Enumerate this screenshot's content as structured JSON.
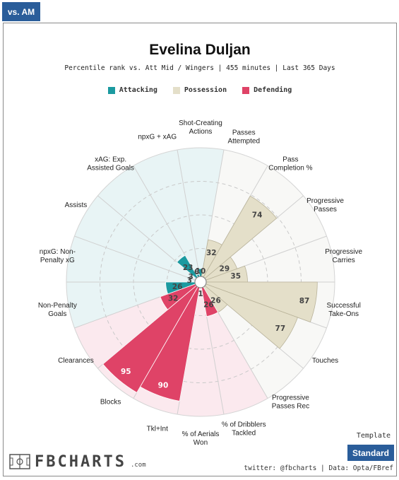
{
  "tab": {
    "label": "vs. AM"
  },
  "header": {
    "title": "Evelina Duljan",
    "subtitle": "Percentile rank vs. Att Mid / Wingers | 455 minutes | Last 365 Days"
  },
  "legend": [
    {
      "label": "Attacking",
      "color": "#1b9aa0"
    },
    {
      "label": "Possession",
      "color": "#e4dfc9"
    },
    {
      "label": "Defending",
      "color": "#df4367"
    }
  ],
  "template": {
    "label": "Template",
    "button": "Standard"
  },
  "logo": {
    "text": "FBCHARTS",
    "suffix": ".com"
  },
  "footer": {
    "credit": "twitter: @fbcharts | Data: Opta/FBref"
  },
  "chart_data": {
    "type": "radar-bar",
    "ylim": [
      0,
      100
    ],
    "categories": [
      "Shot-Creating Actions",
      "Passes Attempted",
      "Pass Completion %",
      "Progressive Passes",
      "Progressive Carries",
      "Successful Take-Ons",
      "Touches",
      "Progressive Passes Rec",
      "% of Dribblers Tackled",
      "% of Aerials Won",
      "Tkl+Int",
      "Blocks",
      "Clearances",
      "Non-Penalty Goals",
      "npxG: Non-Penalty xG",
      "Assists",
      "xAG: Exp. Assisted Goals",
      "npxG + xAG"
    ],
    "label_lines": [
      [
        "Shot-Creating",
        "Actions"
      ],
      [
        "Passes",
        "Attempted"
      ],
      [
        "Pass",
        "Completion %"
      ],
      [
        "Progressive",
        "Passes"
      ],
      [
        "Progressive",
        "Carries"
      ],
      [
        "Successful",
        "Take-Ons"
      ],
      [
        "Touches"
      ],
      [
        "Progressive",
        "Passes Rec"
      ],
      [
        "% of Dribblers",
        "Tackled"
      ],
      [
        "% of Aerials",
        "Won"
      ],
      [
        "Tkl+Int"
      ],
      [
        "Blocks"
      ],
      [
        "Clearances"
      ],
      [
        "Non-Penalty",
        "Goals"
      ],
      [
        "npxG: Non-",
        "Penalty xG"
      ],
      [
        "Assists"
      ],
      [
        "xAG: Exp.",
        "Assisted Goals"
      ],
      [
        "npxG + xAG"
      ]
    ],
    "groups": [
      "Attacking",
      "Possession",
      "Possession",
      "Possession",
      "Possession",
      "Possession",
      "Possession",
      "Possession",
      "Defending",
      "Defending",
      "Defending",
      "Defending",
      "Defending",
      "Attacking",
      "Attacking",
      "Attacking",
      "Attacking",
      "Attacking"
    ],
    "values": [
      10,
      32,
      74,
      29,
      35,
      87,
      77,
      26,
      26,
      1,
      90,
      95,
      32,
      26,
      3,
      3,
      23,
      6
    ]
  }
}
